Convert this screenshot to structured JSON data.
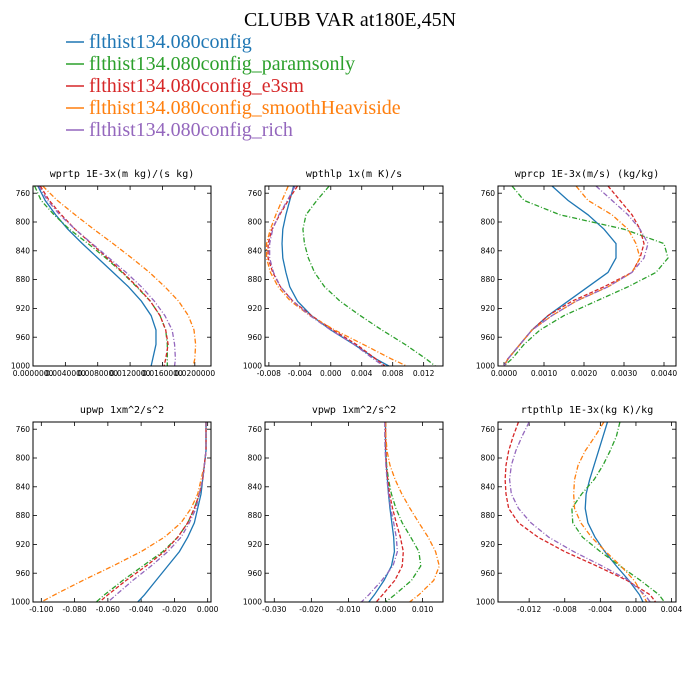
{
  "figure": {
    "title": "CLUBB VAR at180E,45N"
  },
  "legend": [
    {
      "label": "flthist134.080config",
      "color": "#1f77b4",
      "dash": "solid"
    },
    {
      "label": "flthist134.080config_paramsonly",
      "color": "#2ca02c",
      "dash": "dashdot"
    },
    {
      "label": "flthist134.080config_e3sm",
      "color": "#d62728",
      "dash": "dash"
    },
    {
      "label": "flthist134.080config_smoothHeaviside",
      "color": "#ff7f0e",
      "dash": "dashdot"
    },
    {
      "label": "flthist134.080config_rich",
      "color": "#9467bd",
      "dash": "dashdot"
    }
  ],
  "chart_data": [
    {
      "type": "line",
      "title": "wprtp  1E-3x(m kg)/(s kg)",
      "xlim": [
        0.0,
        0.022
      ],
      "ylim": [
        1000,
        750
      ],
      "xticks": [
        0.0,
        0.004,
        0.008,
        0.012,
        0.016,
        0.02
      ],
      "xtick_labels": [
        "0.0000000",
        "0.0040000",
        "0.0080000",
        "0.0120000",
        "0.0160000",
        "0.0200000"
      ],
      "yticks": [
        760,
        800,
        840,
        880,
        920,
        960,
        1000
      ],
      "ytick_labels": [
        "760",
        "800",
        "840",
        "880",
        "920",
        "960",
        "1000"
      ],
      "levels": [
        750,
        770,
        790,
        810,
        830,
        850,
        870,
        890,
        910,
        930,
        950,
        970,
        990,
        1000
      ],
      "series": [
        {
          "name": "flthist134.080config",
          "values": [
            0.0006,
            0.0015,
            0.0028,
            0.0043,
            0.0061,
            0.008,
            0.0099,
            0.0118,
            0.0134,
            0.0146,
            0.0152,
            0.0152,
            0.0148,
            0.0146
          ]
        },
        {
          "name": "flthist134.080config_paramsonly",
          "values": [
            0.0002,
            0.001,
            0.0026,
            0.0045,
            0.0068,
            0.009,
            0.011,
            0.0128,
            0.0145,
            0.0157,
            0.0164,
            0.0166,
            0.0166,
            0.0166
          ]
        },
        {
          "name": "flthist134.080config_e3sm",
          "values": [
            0.0009,
            0.002,
            0.0035,
            0.0052,
            0.0072,
            0.0092,
            0.0111,
            0.0129,
            0.0145,
            0.0157,
            0.0164,
            0.0167,
            0.0164,
            0.0162
          ]
        },
        {
          "name": "flthist134.080config_smoothHeaviside",
          "values": [
            0.0012,
            0.003,
            0.0052,
            0.0075,
            0.0099,
            0.0122,
            0.0144,
            0.0163,
            0.018,
            0.0192,
            0.0199,
            0.0201,
            0.02,
            0.0198
          ]
        },
        {
          "name": "flthist134.080config_rich",
          "values": [
            0.0007,
            0.0018,
            0.0033,
            0.0052,
            0.0073,
            0.0094,
            0.0115,
            0.0134,
            0.015,
            0.0163,
            0.0172,
            0.0175,
            0.0176,
            0.0175
          ]
        }
      ]
    },
    {
      "type": "line",
      "title": "wpthlp  1x(m K)/s",
      "xlim": [
        -0.0085,
        0.0145
      ],
      "ylim": [
        1000,
        750
      ],
      "xticks": [
        -0.008,
        -0.004,
        0.0,
        0.004,
        0.008,
        0.012
      ],
      "xtick_labels": [
        "-0.008",
        "-0.004",
        "0.000",
        "0.004",
        "0.008",
        "0.012"
      ],
      "yticks": [
        760,
        800,
        840,
        880,
        920,
        960,
        1000
      ],
      "ytick_labels": [
        "760",
        "800",
        "840",
        "880",
        "920",
        "960",
        "1000"
      ],
      "levels": [
        750,
        770,
        790,
        810,
        830,
        850,
        870,
        890,
        910,
        930,
        950,
        970,
        990,
        1000
      ],
      "series": [
        {
          "name": "flthist134.080config",
          "values": [
            -0.0048,
            -0.0053,
            -0.0058,
            -0.0062,
            -0.0063,
            -0.0062,
            -0.0058,
            -0.0053,
            -0.0043,
            -0.0025,
            0.0,
            0.003,
            0.0058,
            0.0075
          ]
        },
        {
          "name": "flthist134.080config_paramsonly",
          "values": [
            -0.0002,
            -0.0018,
            -0.0032,
            -0.0036,
            -0.0034,
            -0.0029,
            -0.0021,
            -0.0008,
            0.0012,
            0.0038,
            0.0066,
            0.0096,
            0.0123,
            0.0135
          ]
        },
        {
          "name": "flthist134.080config_e3sm",
          "values": [
            -0.0043,
            -0.0055,
            -0.0066,
            -0.0076,
            -0.0081,
            -0.0081,
            -0.0075,
            -0.0065,
            -0.0049,
            -0.0025,
            0.0003,
            0.0033,
            0.0058,
            0.007
          ]
        },
        {
          "name": "flthist134.080config_smoothHeaviside",
          "values": [
            -0.0055,
            -0.0063,
            -0.0071,
            -0.0078,
            -0.0083,
            -0.0083,
            -0.0078,
            -0.0068,
            -0.0052,
            -0.0027,
            0.0005,
            0.0042,
            0.0078,
            0.0098
          ]
        },
        {
          "name": "flthist134.080config_rich",
          "values": [
            -0.0046,
            -0.0056,
            -0.0067,
            -0.0075,
            -0.0079,
            -0.0079,
            -0.0074,
            -0.0065,
            -0.0049,
            -0.0027,
            0.0,
            0.003,
            0.0055,
            0.0068
          ]
        }
      ]
    },
    {
      "type": "line",
      "title": "wprcp  1E-3x(m/s) (kg/kg)",
      "xlim": [
        -0.00015,
        0.0043
      ],
      "ylim": [
        1000,
        750
      ],
      "xticks": [
        0.0,
        0.001,
        0.002,
        0.003,
        0.004
      ],
      "xtick_labels": [
        "0.0000",
        "0.0010",
        "0.0020",
        "0.0030",
        "0.0040"
      ],
      "yticks": [
        760,
        800,
        840,
        880,
        920,
        960,
        1000
      ],
      "ytick_labels": [
        "760",
        "800",
        "840",
        "880",
        "920",
        "960",
        "1000"
      ],
      "levels": [
        750,
        770,
        790,
        810,
        830,
        850,
        870,
        890,
        910,
        930,
        950,
        970,
        990,
        1000
      ],
      "series": [
        {
          "name": "flthist134.080config",
          "values": [
            0.0012,
            0.0016,
            0.0021,
            0.0025,
            0.0028,
            0.0028,
            0.0026,
            0.0021,
            0.0016,
            0.0011,
            0.0007,
            0.0004,
            0.0001,
            0.0
          ]
        },
        {
          "name": "flthist134.080config_paramsonly",
          "values": [
            0.0002,
            0.0005,
            0.0014,
            0.003,
            0.004,
            0.0041,
            0.0038,
            0.0031,
            0.0023,
            0.0015,
            0.0009,
            0.0005,
            0.0002,
            0.0
          ]
        },
        {
          "name": "flthist134.080config_e3sm",
          "values": [
            0.0026,
            0.0029,
            0.0032,
            0.0034,
            0.0035,
            0.0034,
            0.0032,
            0.0025,
            0.0017,
            0.0011,
            0.0007,
            0.0004,
            0.0001,
            0.0
          ]
        },
        {
          "name": "flthist134.080config_smoothHeaviside",
          "values": [
            0.0018,
            0.0021,
            0.0027,
            0.0031,
            0.0033,
            0.0034,
            0.0032,
            0.0026,
            0.0018,
            0.0012,
            0.0007,
            0.0004,
            0.0001,
            0.0
          ]
        },
        {
          "name": "flthist134.080config_rich",
          "values": [
            0.0023,
            0.0027,
            0.0031,
            0.0034,
            0.0036,
            0.0035,
            0.0032,
            0.0026,
            0.0018,
            0.0012,
            0.0007,
            0.0004,
            0.0001,
            0.0
          ]
        }
      ]
    },
    {
      "type": "line",
      "title": "upwp  1xm^2/s^2",
      "xlim": [
        -0.105,
        0.002
      ],
      "ylim": [
        1000,
        750
      ],
      "xticks": [
        -0.1,
        -0.08,
        -0.06,
        -0.04,
        -0.02,
        0.0
      ],
      "xtick_labels": [
        "-0.100",
        "-0.080",
        "-0.060",
        "-0.040",
        "-0.020",
        "0.000"
      ],
      "yticks": [
        760,
        800,
        840,
        880,
        920,
        960,
        1000
      ],
      "ytick_labels": [
        "760",
        "800",
        "840",
        "880",
        "920",
        "960",
        "1000"
      ],
      "levels": [
        750,
        770,
        790,
        810,
        830,
        850,
        870,
        890,
        910,
        930,
        950,
        970,
        990,
        1000
      ],
      "series": [
        {
          "name": "flthist134.080config",
          "values": [
            -0.001,
            -0.001,
            -0.001,
            -0.002,
            -0.003,
            -0.004,
            -0.006,
            -0.008,
            -0.012,
            -0.017,
            -0.024,
            -0.031,
            -0.038,
            -0.042
          ]
        },
        {
          "name": "flthist134.080config_paramsonly",
          "values": [
            -0.001,
            -0.001,
            -0.001,
            -0.002,
            -0.003,
            -0.005,
            -0.008,
            -0.012,
            -0.018,
            -0.027,
            -0.039,
            -0.051,
            -0.062,
            -0.067
          ]
        },
        {
          "name": "flthist134.080config_e3sm",
          "values": [
            -0.001,
            -0.001,
            -0.001,
            -0.002,
            -0.003,
            -0.005,
            -0.008,
            -0.012,
            -0.018,
            -0.026,
            -0.037,
            -0.049,
            -0.06,
            -0.065
          ]
        },
        {
          "name": "flthist134.080config_smoothHeaviside",
          "values": [
            -0.001,
            -0.001,
            -0.001,
            -0.002,
            -0.004,
            -0.006,
            -0.01,
            -0.016,
            -0.026,
            -0.04,
            -0.057,
            -0.075,
            -0.092,
            -0.1
          ]
        },
        {
          "name": "flthist134.080config_rich",
          "values": [
            -0.001,
            -0.001,
            -0.001,
            -0.002,
            -0.003,
            -0.005,
            -0.007,
            -0.011,
            -0.016,
            -0.024,
            -0.034,
            -0.045,
            -0.055,
            -0.06
          ]
        }
      ]
    },
    {
      "type": "line",
      "title": "vpwp  1xm^2/s^2",
      "xlim": [
        -0.0325,
        0.0155
      ],
      "ylim": [
        1000,
        750
      ],
      "xticks": [
        -0.03,
        -0.02,
        -0.01,
        0.0,
        0.01
      ],
      "xtick_labels": [
        "-0.030",
        "-0.020",
        "-0.010",
        "0.000",
        "0.010"
      ],
      "yticks": [
        760,
        800,
        840,
        880,
        920,
        960,
        1000
      ],
      "ytick_labels": [
        "760",
        "800",
        "840",
        "880",
        "920",
        "960",
        "1000"
      ],
      "levels": [
        750,
        770,
        790,
        810,
        830,
        850,
        870,
        890,
        910,
        930,
        950,
        970,
        990,
        1000
      ],
      "series": [
        {
          "name": "flthist134.080config",
          "values": [
            0.0,
            0.0,
            0.0,
            0.0002,
            0.0005,
            0.0008,
            0.0012,
            0.0017,
            0.0022,
            0.0024,
            0.0016,
            -0.0004,
            -0.003,
            -0.0045
          ]
        },
        {
          "name": "flthist134.080config_paramsonly",
          "values": [
            0.0,
            0.0,
            0.0001,
            0.0003,
            0.0008,
            0.0016,
            0.0028,
            0.0045,
            0.0068,
            0.009,
            0.0095,
            0.007,
            0.0025,
            0.0
          ]
        },
        {
          "name": "flthist134.080config_e3sm",
          "values": [
            0.0,
            0.0,
            0.0001,
            0.0002,
            0.0006,
            0.0011,
            0.0019,
            0.0029,
            0.004,
            0.0048,
            0.0045,
            0.0025,
            -0.0008,
            -0.0025
          ]
        },
        {
          "name": "flthist134.080config_smoothHeaviside",
          "values": [
            0.0,
            0.0001,
            0.0004,
            0.0012,
            0.0026,
            0.0044,
            0.0066,
            0.009,
            0.0115,
            0.0135,
            0.0145,
            0.013,
            0.009,
            0.0065
          ]
        },
        {
          "name": "flthist134.080config_rich",
          "values": [
            -0.0002,
            -0.0002,
            -0.0001,
            0.0001,
            0.0004,
            0.0008,
            0.0014,
            0.0022,
            0.0029,
            0.0032,
            0.002,
            -0.001,
            -0.0045,
            -0.0065
          ]
        }
      ]
    },
    {
      "type": "line",
      "title": "rtpthlp  1E-3x(kg K)/kg",
      "xlim": [
        -0.0155,
        0.0045
      ],
      "ylim": [
        1000,
        750
      ],
      "xticks": [
        -0.012,
        -0.008,
        -0.004,
        0.0,
        0.004
      ],
      "xtick_labels": [
        "-0.012",
        "-0.008",
        "-0.004",
        "0.000",
        "0.004"
      ],
      "yticks": [
        760,
        800,
        840,
        880,
        920,
        960,
        1000
      ],
      "ytick_labels": [
        "760",
        "800",
        "840",
        "880",
        "920",
        "960",
        "1000"
      ],
      "levels": [
        750,
        770,
        790,
        810,
        830,
        850,
        870,
        890,
        910,
        930,
        950,
        970,
        990,
        1000
      ],
      "series": [
        {
          "name": "flthist134.080config",
          "values": [
            -0.0032,
            -0.0037,
            -0.0042,
            -0.0047,
            -0.0052,
            -0.0056,
            -0.0057,
            -0.0054,
            -0.0046,
            -0.0035,
            -0.0022,
            -0.0008,
            0.0004,
            0.0008
          ]
        },
        {
          "name": "flthist134.080config_paramsonly",
          "values": [
            -0.0018,
            -0.0022,
            -0.0029,
            -0.0037,
            -0.0047,
            -0.0061,
            -0.0072,
            -0.0071,
            -0.006,
            -0.004,
            -0.0018,
            0.0005,
            0.0026,
            0.0032
          ]
        },
        {
          "name": "flthist134.080config_e3sm",
          "values": [
            -0.0132,
            -0.0138,
            -0.0143,
            -0.0146,
            -0.0147,
            -0.0146,
            -0.0143,
            -0.0132,
            -0.011,
            -0.008,
            -0.0044,
            -0.001,
            0.0016,
            0.0022
          ]
        },
        {
          "name": "flthist134.080config_smoothHeaviside",
          "values": [
            -0.0036,
            -0.0046,
            -0.0057,
            -0.0065,
            -0.0069,
            -0.007,
            -0.0069,
            -0.0062,
            -0.005,
            -0.0034,
            -0.0017,
            -0.0002,
            0.0008,
            0.0012
          ]
        },
        {
          "name": "flthist134.080config_rich",
          "values": [
            -0.012,
            -0.0128,
            -0.0135,
            -0.014,
            -0.0142,
            -0.014,
            -0.0132,
            -0.0118,
            -0.0098,
            -0.007,
            -0.0038,
            -0.0008,
            0.001,
            0.0016
          ]
        }
      ]
    }
  ]
}
